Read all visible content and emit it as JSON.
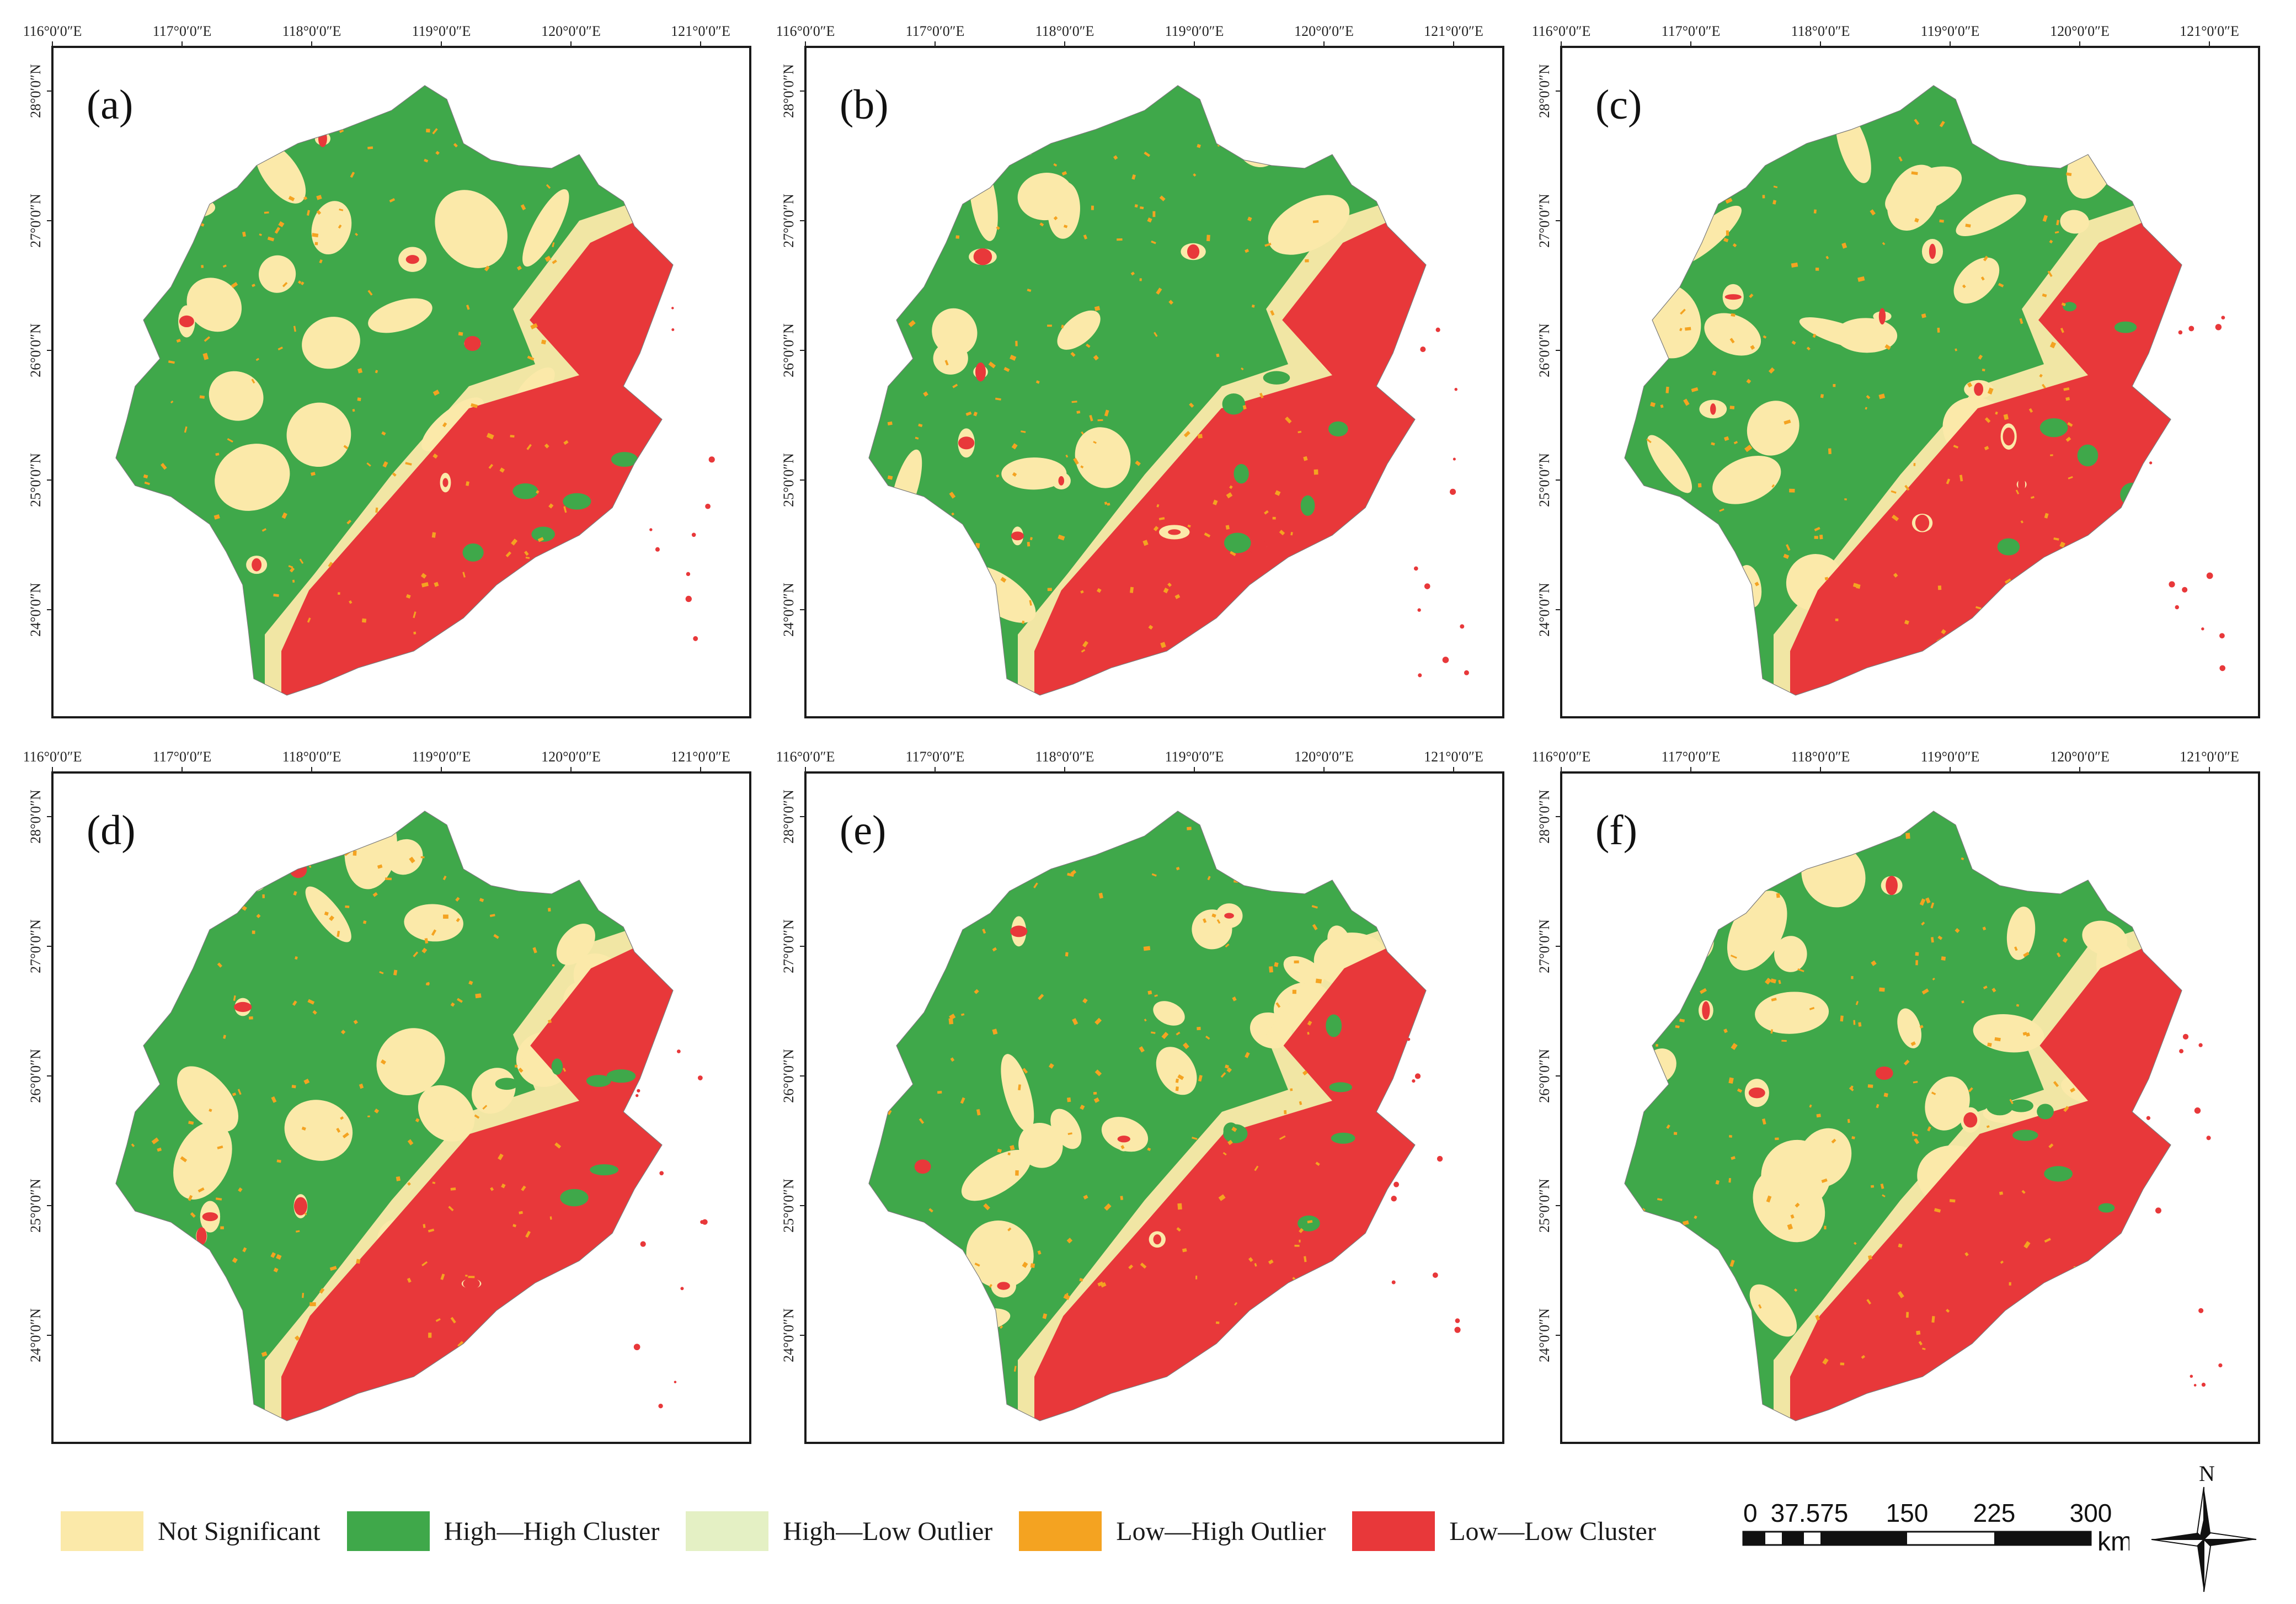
{
  "figure": {
    "x_ticks": [
      "116°0′0″E",
      "117°0′0″E",
      "118°0′0″E",
      "119°0′0″E",
      "120°0′0″E",
      "121°0′0″E"
    ],
    "y_ticks": [
      "28°0′0″N",
      "27°0′0″N",
      "26°0′0″N",
      "25°0′0″N",
      "24°0′0″N"
    ],
    "panels": [
      {
        "label": "(a)",
        "red_share": 0.2,
        "yellow_share": 0.15
      },
      {
        "label": "(b)",
        "red_share": 0.22,
        "yellow_share": 0.16
      },
      {
        "label": "(c)",
        "red_share": 0.2,
        "yellow_share": 0.22
      },
      {
        "label": "(d)",
        "red_share": 0.17,
        "yellow_share": 0.18
      },
      {
        "label": "(e)",
        "red_share": 0.16,
        "yellow_share": 0.22
      },
      {
        "label": "(f)",
        "red_share": 0.14,
        "yellow_share": 0.3
      }
    ]
  },
  "legend": {
    "items": [
      {
        "label": "Not Significant",
        "color": "#fbe9a9"
      },
      {
        "label": "High—High Cluster",
        "color": "#3fa84a"
      },
      {
        "label": "High—Low Outlier",
        "color": "#e4f0c4"
      },
      {
        "label": "Low—High Outlier",
        "color": "#f4a321"
      },
      {
        "label": "Low—Low Cluster",
        "color": "#e8383a"
      }
    ]
  },
  "scale_bar": {
    "labels": [
      "0",
      "37.575",
      "150",
      "225",
      "300"
    ],
    "unit": "km"
  },
  "north_arrow": {
    "label": "N"
  }
}
